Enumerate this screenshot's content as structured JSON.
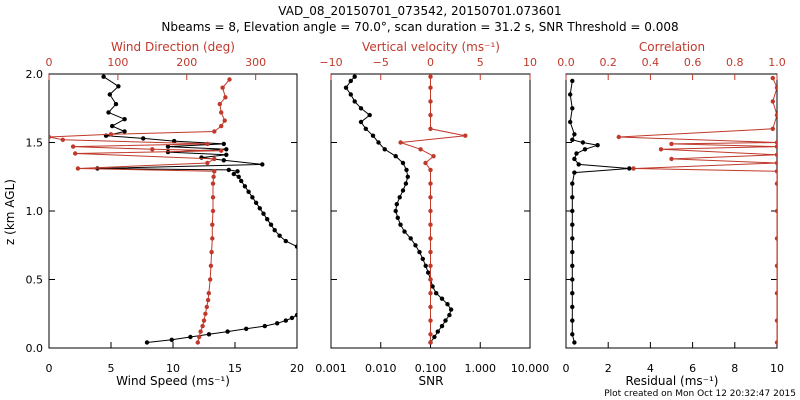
{
  "header": {
    "title_line1": "VAD_08_20150701_073542, 20150701.073601",
    "title_line2": "Nbeams = 8, Elevation angle = 70.0°, scan duration = 31.2 s, SNR Threshold = 0.008"
  },
  "footer": {
    "created": "Plot created on Mon Oct 12 20:32:47 2015"
  },
  "colors": {
    "black": "#000000",
    "red": "#c0392b"
  },
  "chart_data": [
    {
      "type": "line",
      "ylabel": "z (km AGL)",
      "ylim": [
        0,
        2.0
      ],
      "ytick_labels": [
        "0.0",
        "0.5",
        "1.0",
        "1.5",
        "2.0"
      ],
      "bottom_axis": {
        "label": "Wind Speed (ms⁻¹)",
        "lim": [
          0,
          20
        ],
        "tick_labels": [
          "0",
          "5",
          "10",
          "15",
          "20"
        ]
      },
      "top_axis": {
        "label": "Wind Direction (deg)",
        "lim": [
          0,
          360
        ],
        "tick_labels": [
          "0",
          "100",
          "200",
          "300"
        ]
      },
      "series": [
        {
          "color": "black",
          "axis": "bottom",
          "points": [
            [
              7.9,
              0.04
            ],
            [
              9.9,
              0.06
            ],
            [
              11.4,
              0.08
            ],
            [
              12.9,
              0.1
            ],
            [
              14.4,
              0.12
            ],
            [
              15.9,
              0.14
            ],
            [
              17.4,
              0.16
            ],
            [
              18.4,
              0.18
            ],
            [
              19.1,
              0.2
            ],
            [
              19.6,
              0.22
            ],
            [
              20.0,
              0.24
            ],
            [
              20.0,
              0.74
            ],
            [
              19.1,
              0.78
            ],
            [
              18.6,
              0.82
            ],
            [
              18.2,
              0.86
            ],
            [
              17.9,
              0.9
            ],
            [
              17.6,
              0.94
            ],
            [
              17.3,
              0.98
            ],
            [
              17.0,
              1.02
            ],
            [
              16.7,
              1.06
            ],
            [
              16.4,
              1.1
            ],
            [
              16.1,
              1.14
            ],
            [
              15.8,
              1.18
            ],
            [
              15.5,
              1.22
            ],
            [
              15.3,
              1.25
            ],
            [
              14.9,
              1.27
            ],
            [
              15.2,
              1.29
            ],
            [
              14.5,
              1.3
            ],
            [
              3.9,
              1.31
            ],
            [
              17.2,
              1.34
            ],
            [
              14.1,
              1.37
            ],
            [
              12.3,
              1.39
            ],
            [
              14.3,
              1.41
            ],
            [
              9.6,
              1.43
            ],
            [
              14.3,
              1.45
            ],
            [
              9.6,
              1.47
            ],
            [
              14.1,
              1.49
            ],
            [
              10.1,
              1.51
            ],
            [
              7.6,
              1.53
            ],
            [
              4.6,
              1.55
            ],
            [
              6.1,
              1.58
            ],
            [
              5.1,
              1.62
            ],
            [
              6.1,
              1.67
            ],
            [
              4.8,
              1.72
            ],
            [
              5.4,
              1.78
            ],
            [
              4.9,
              1.85
            ],
            [
              5.6,
              1.91
            ],
            [
              4.4,
              1.98
            ]
          ]
        },
        {
          "color": "red",
          "axis": "top",
          "points": [
            [
              216,
              0.04
            ],
            [
              218,
              0.08
            ],
            [
              220,
              0.12
            ],
            [
              223,
              0.16
            ],
            [
              225,
              0.2
            ],
            [
              227,
              0.25
            ],
            [
              229,
              0.3
            ],
            [
              231,
              0.35
            ],
            [
              232,
              0.4
            ],
            [
              234,
              0.5
            ],
            [
              235,
              0.6
            ],
            [
              236,
              0.7
            ],
            [
              237,
              0.8
            ],
            [
              237,
              0.9
            ],
            [
              238,
              1.0
            ],
            [
              238,
              1.1
            ],
            [
              238,
              1.2
            ],
            [
              239,
              1.25
            ],
            [
              240,
              1.29
            ],
            [
              42,
              1.31
            ],
            [
              230,
              1.35
            ],
            [
              240,
              1.38
            ],
            [
              38,
              1.42
            ],
            [
              250,
              1.44
            ],
            [
              150,
              1.45
            ],
            [
              35,
              1.47
            ],
            [
              230,
              1.49
            ],
            [
              20,
              1.52
            ],
            [
              0,
              1.54
            ],
            [
              90,
              1.56
            ],
            [
              240,
              1.58
            ],
            [
              250,
              1.62
            ],
            [
              255,
              1.66
            ],
            [
              250,
              1.72
            ],
            [
              248,
              1.78
            ],
            [
              256,
              1.83
            ],
            [
              252,
              1.9
            ],
            [
              262,
              1.96
            ]
          ]
        }
      ]
    },
    {
      "type": "line",
      "bottom_axis": {
        "label": "SNR",
        "scale": "log",
        "lim": [
          0.001,
          10.0
        ],
        "tick_labels": [
          "0.001",
          "0.010",
          "0.100",
          "1.000",
          "10.000"
        ]
      },
      "top_axis": {
        "label": "Vertical velocity (ms⁻¹)",
        "lim": [
          -10,
          10
        ],
        "tick_labels": [
          "−10",
          "−5",
          "0",
          "5",
          "10"
        ]
      },
      "series": [
        {
          "color": "black",
          "axis": "bottom",
          "points": [
            [
              0.1,
              0.04
            ],
            [
              0.12,
              0.08
            ],
            [
              0.14,
              0.12
            ],
            [
              0.17,
              0.16
            ],
            [
              0.2,
              0.2
            ],
            [
              0.24,
              0.24
            ],
            [
              0.26,
              0.28
            ],
            [
              0.22,
              0.32
            ],
            [
              0.17,
              0.36
            ],
            [
              0.13,
              0.4
            ],
            [
              0.11,
              0.45
            ],
            [
              0.1,
              0.5
            ],
            [
              0.09,
              0.55
            ],
            [
              0.08,
              0.6
            ],
            [
              0.07,
              0.65
            ],
            [
              0.06,
              0.7
            ],
            [
              0.05,
              0.75
            ],
            [
              0.04,
              0.8
            ],
            [
              0.03,
              0.85
            ],
            [
              0.025,
              0.9
            ],
            [
              0.022,
              0.95
            ],
            [
              0.02,
              1.0
            ],
            [
              0.021,
              1.05
            ],
            [
              0.024,
              1.1
            ],
            [
              0.028,
              1.15
            ],
            [
              0.032,
              1.2
            ],
            [
              0.035,
              1.25
            ],
            [
              0.033,
              1.3
            ],
            [
              0.028,
              1.35
            ],
            [
              0.02,
              1.4
            ],
            [
              0.012,
              1.45
            ],
            [
              0.009,
              1.5
            ],
            [
              0.007,
              1.55
            ],
            [
              0.005,
              1.6
            ],
            [
              0.004,
              1.65
            ],
            [
              0.006,
              1.7
            ],
            [
              0.004,
              1.75
            ],
            [
              0.003,
              1.8
            ],
            [
              0.0025,
              1.85
            ],
            [
              0.002,
              1.9
            ],
            [
              0.0025,
              1.95
            ],
            [
              0.003,
              1.98
            ]
          ]
        },
        {
          "color": "red",
          "axis": "top",
          "points": [
            [
              0,
              0.04
            ],
            [
              0,
              0.1
            ],
            [
              0,
              0.2
            ],
            [
              0,
              0.3
            ],
            [
              0,
              0.4
            ],
            [
              0,
              0.5
            ],
            [
              0,
              0.6
            ],
            [
              0,
              0.7
            ],
            [
              0,
              0.8
            ],
            [
              0,
              0.9
            ],
            [
              0,
              1.0
            ],
            [
              0,
              1.1
            ],
            [
              0,
              1.2
            ],
            [
              0,
              1.3
            ],
            [
              -0.5,
              1.35
            ],
            [
              0.3,
              1.4
            ],
            [
              -1,
              1.45
            ],
            [
              -3,
              1.5
            ],
            [
              3.5,
              1.55
            ],
            [
              0,
              1.6
            ],
            [
              0,
              1.7
            ],
            [
              0,
              1.8
            ],
            [
              0,
              1.9
            ],
            [
              0,
              1.98
            ]
          ]
        }
      ]
    },
    {
      "type": "line",
      "bottom_axis": {
        "label": "Residual (ms⁻¹)",
        "lim": [
          0,
          10
        ],
        "tick_labels": [
          "0",
          "2",
          "4",
          "6",
          "8",
          "10"
        ]
      },
      "top_axis": {
        "label": "Correlation",
        "lim": [
          0,
          1.0
        ],
        "tick_labels": [
          "0.0",
          "0.2",
          "0.4",
          "0.6",
          "0.8",
          "1.0"
        ]
      },
      "series": [
        {
          "color": "black",
          "axis": "bottom",
          "points": [
            [
              0.4,
              0.04
            ],
            [
              0.3,
              0.1
            ],
            [
              0.3,
              0.2
            ],
            [
              0.3,
              0.3
            ],
            [
              0.3,
              0.4
            ],
            [
              0.3,
              0.5
            ],
            [
              0.3,
              0.6
            ],
            [
              0.3,
              0.7
            ],
            [
              0.3,
              0.8
            ],
            [
              0.3,
              0.9
            ],
            [
              0.3,
              1.0
            ],
            [
              0.3,
              1.1
            ],
            [
              0.3,
              1.2
            ],
            [
              0.4,
              1.28
            ],
            [
              3.0,
              1.31
            ],
            [
              0.6,
              1.34
            ],
            [
              0.4,
              1.38
            ],
            [
              0.5,
              1.42
            ],
            [
              0.9,
              1.45
            ],
            [
              1.5,
              1.48
            ],
            [
              0.8,
              1.5
            ],
            [
              0.3,
              1.52
            ],
            [
              0.4,
              1.56
            ],
            [
              0.2,
              1.65
            ],
            [
              0.3,
              1.75
            ],
            [
              0.2,
              1.85
            ],
            [
              0.3,
              1.95
            ]
          ]
        },
        {
          "color": "red",
          "axis": "top",
          "points": [
            [
              1.0,
              0.04
            ],
            [
              1.0,
              0.2
            ],
            [
              1.0,
              0.4
            ],
            [
              1.0,
              0.6
            ],
            [
              1.0,
              0.8
            ],
            [
              1.0,
              1.0
            ],
            [
              1.0,
              1.2
            ],
            [
              1.0,
              1.29
            ],
            [
              0.32,
              1.31
            ],
            [
              1.0,
              1.35
            ],
            [
              0.5,
              1.38
            ],
            [
              1.0,
              1.41
            ],
            [
              0.45,
              1.45
            ],
            [
              1.0,
              1.47
            ],
            [
              0.5,
              1.49
            ],
            [
              1.0,
              1.5
            ],
            [
              0.25,
              1.54
            ],
            [
              0.98,
              1.6
            ],
            [
              1.0,
              1.7
            ],
            [
              0.98,
              1.8
            ],
            [
              1.0,
              1.9
            ],
            [
              0.98,
              1.97
            ]
          ]
        }
      ]
    }
  ]
}
